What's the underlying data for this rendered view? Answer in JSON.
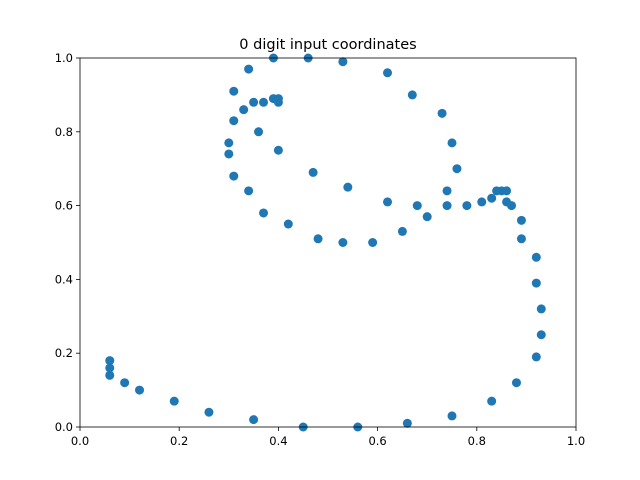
{
  "chart_data": {
    "type": "scatter",
    "title": "0 digit input coordinates",
    "xlabel": "",
    "ylabel": "",
    "xlim": [
      0.0,
      1.0
    ],
    "ylim": [
      0.0,
      1.0
    ],
    "x_ticks": [
      "0.0",
      "0.2",
      "0.4",
      "0.6",
      "0.8",
      "1.0"
    ],
    "y_ticks": [
      "0.0",
      "0.2",
      "0.4",
      "0.6",
      "0.8",
      "1.0"
    ],
    "grid": false,
    "legend": "none",
    "marker_color": "#1f77b4",
    "series": [
      {
        "points": [
          [
            0.39,
            1.0
          ],
          [
            0.46,
            1.0
          ],
          [
            0.53,
            0.99
          ],
          [
            0.62,
            0.96
          ],
          [
            0.67,
            0.9
          ],
          [
            0.73,
            0.85
          ],
          [
            0.75,
            0.77
          ],
          [
            0.76,
            0.7
          ],
          [
            0.74,
            0.64
          ],
          [
            0.74,
            0.6
          ],
          [
            0.78,
            0.6
          ],
          [
            0.81,
            0.61
          ],
          [
            0.83,
            0.62
          ],
          [
            0.84,
            0.64
          ],
          [
            0.85,
            0.64
          ],
          [
            0.86,
            0.64
          ],
          [
            0.86,
            0.61
          ],
          [
            0.87,
            0.6
          ],
          [
            0.89,
            0.56
          ],
          [
            0.89,
            0.51
          ],
          [
            0.92,
            0.46
          ],
          [
            0.92,
            0.39
          ],
          [
            0.93,
            0.32
          ],
          [
            0.93,
            0.25
          ],
          [
            0.92,
            0.19
          ],
          [
            0.88,
            0.12
          ],
          [
            0.83,
            0.07
          ],
          [
            0.75,
            0.03
          ],
          [
            0.66,
            0.01
          ],
          [
            0.56,
            0.0
          ],
          [
            0.45,
            0.0
          ],
          [
            0.35,
            0.02
          ],
          [
            0.26,
            0.04
          ],
          [
            0.19,
            0.07
          ],
          [
            0.12,
            0.1
          ],
          [
            0.09,
            0.12
          ],
          [
            0.06,
            0.14
          ],
          [
            0.06,
            0.16
          ],
          [
            0.06,
            0.18
          ],
          [
            0.34,
            0.97
          ],
          [
            0.31,
            0.91
          ],
          [
            0.39,
            0.89
          ],
          [
            0.4,
            0.89
          ],
          [
            0.4,
            0.88
          ],
          [
            0.35,
            0.88
          ],
          [
            0.37,
            0.88
          ],
          [
            0.33,
            0.86
          ],
          [
            0.31,
            0.83
          ],
          [
            0.36,
            0.8
          ],
          [
            0.3,
            0.77
          ],
          [
            0.4,
            0.75
          ],
          [
            0.3,
            0.74
          ],
          [
            0.47,
            0.69
          ],
          [
            0.31,
            0.68
          ],
          [
            0.54,
            0.65
          ],
          [
            0.34,
            0.64
          ],
          [
            0.62,
            0.61
          ],
          [
            0.68,
            0.6
          ],
          [
            0.37,
            0.58
          ],
          [
            0.7,
            0.57
          ],
          [
            0.42,
            0.55
          ],
          [
            0.65,
            0.53
          ],
          [
            0.48,
            0.51
          ],
          [
            0.53,
            0.5
          ],
          [
            0.59,
            0.5
          ]
        ]
      }
    ]
  }
}
